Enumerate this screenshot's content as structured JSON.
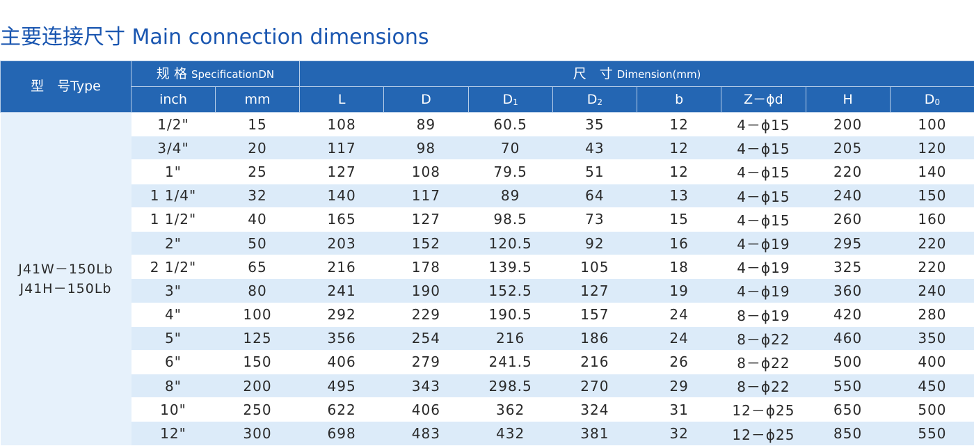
{
  "title": "主要连接尺寸  Main connection dimensions",
  "header": {
    "type_label": "型　号Type",
    "spec_cn": "规 格 ",
    "spec_en": "SpecificationDN",
    "dim_cn": "尺　寸 ",
    "dim_en": "Dimension(mm)",
    "inch": "inch",
    "mm": "mm",
    "L": "L",
    "D": "D",
    "D1_base": "D",
    "D1_sub": "1",
    "D2_base": "D",
    "D2_sub": "2",
    "b": "b",
    "Z": "Z－ϕd",
    "H": "H",
    "D0_base": "D",
    "D0_sub": "0"
  },
  "models": [
    "J41W－150Lb",
    "J41H－150Lb"
  ],
  "rows": [
    {
      "inch": "1/2\"",
      "mm": "15",
      "L": "108",
      "D": "89",
      "D1": "60.5",
      "D2": "35",
      "b": "12",
      "Z": "4－ϕ15",
      "H": "200",
      "D0": "100"
    },
    {
      "inch": "3/4\"",
      "mm": "20",
      "L": "117",
      "D": "98",
      "D1": "70",
      "D2": "43",
      "b": "12",
      "Z": "4－ϕ15",
      "H": "205",
      "D0": "120"
    },
    {
      "inch": "1\"",
      "mm": "25",
      "L": "127",
      "D": "108",
      "D1": "79.5",
      "D2": "51",
      "b": "12",
      "Z": "4－ϕ15",
      "H": "220",
      "D0": "140"
    },
    {
      "inch": "1 1/4\"",
      "mm": "32",
      "L": "140",
      "D": "117",
      "D1": "89",
      "D2": "64",
      "b": "13",
      "Z": "4－ϕ15",
      "H": "240",
      "D0": "150"
    },
    {
      "inch": "1 1/2\"",
      "mm": "40",
      "L": "165",
      "D": "127",
      "D1": "98.5",
      "D2": "73",
      "b": "15",
      "Z": "4－ϕ15",
      "H": "260",
      "D0": "160"
    },
    {
      "inch": "2\"",
      "mm": "50",
      "L": "203",
      "D": "152",
      "D1": "120.5",
      "D2": "92",
      "b": "16",
      "Z": "4－ϕ19",
      "H": "295",
      "D0": "220"
    },
    {
      "inch": "2 1/2\"",
      "mm": "65",
      "L": "216",
      "D": "178",
      "D1": "139.5",
      "D2": "105",
      "b": "18",
      "Z": "4－ϕ19",
      "H": "325",
      "D0": "220"
    },
    {
      "inch": "3\"",
      "mm": "80",
      "L": "241",
      "D": "190",
      "D1": "152.5",
      "D2": "127",
      "b": "19",
      "Z": "4－ϕ19",
      "H": "360",
      "D0": "240"
    },
    {
      "inch": "4\"",
      "mm": "100",
      "L": "292",
      "D": "229",
      "D1": "190.5",
      "D2": "157",
      "b": "24",
      "Z": "8－ϕ19",
      "H": "420",
      "D0": "280"
    },
    {
      "inch": "5\"",
      "mm": "125",
      "L": "356",
      "D": "254",
      "D1": "216",
      "D2": "186",
      "b": "24",
      "Z": "8－ϕ22",
      "H": "460",
      "D0": "350"
    },
    {
      "inch": "6\"",
      "mm": "150",
      "L": "406",
      "D": "279",
      "D1": "241.5",
      "D2": "216",
      "b": "26",
      "Z": "8－ϕ22",
      "H": "500",
      "D0": "400"
    },
    {
      "inch": "8\"",
      "mm": "200",
      "L": "495",
      "D": "343",
      "D1": "298.5",
      "D2": "270",
      "b": "29",
      "Z": "8－ϕ22",
      "H": "550",
      "D0": "450"
    },
    {
      "inch": "10\"",
      "mm": "250",
      "L": "622",
      "D": "406",
      "D1": "362",
      "D2": "324",
      "b": "31",
      "Z": "12－ϕ25",
      "H": "650",
      "D0": "500"
    },
    {
      "inch": "12\"",
      "mm": "300",
      "L": "698",
      "D": "483",
      "D1": "432",
      "D2": "381",
      "b": "32",
      "Z": "12－ϕ25",
      "H": "850",
      "D0": "550"
    }
  ]
}
